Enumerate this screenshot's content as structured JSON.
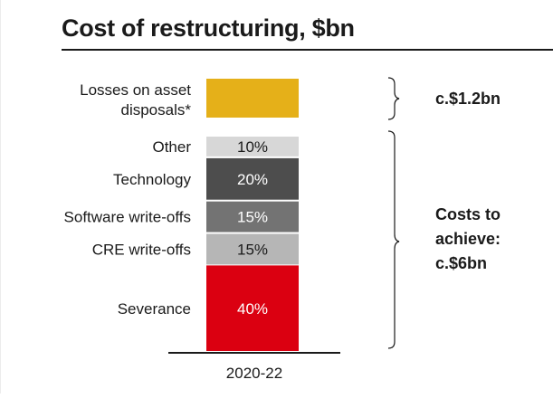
{
  "title": "Cost of restructuring, $bn",
  "chart_data": {
    "type": "bar",
    "stacked": true,
    "title": "Cost of restructuring, $bn",
    "categories": [
      "2020-22"
    ],
    "series": [
      {
        "name": "Severance",
        "value": 40,
        "label": "40%",
        "color": "#db0011",
        "text_color": "#ffffff"
      },
      {
        "name": "CRE write-offs",
        "value": 15,
        "label": "15%",
        "color": "#b6b6b6",
        "text_color": "#1a1a1a"
      },
      {
        "name": "Software write-offs",
        "value": 15,
        "label": "15%",
        "color": "#737373",
        "text_color": "#ffffff"
      },
      {
        "name": "Technology",
        "value": 20,
        "label": "20%",
        "color": "#4d4d4d",
        "text_color": "#ffffff"
      },
      {
        "name": "Other",
        "value": 10,
        "label": "10%",
        "color": "#d7d7d7",
        "text_color": "#1a1a1a"
      }
    ],
    "separate_segment": {
      "name_lines": [
        "Losses on asset",
        "disposals*"
      ],
      "color": "#e5b019"
    },
    "annotations": {
      "losses": "c.$1.2bn",
      "costs": [
        "Costs to",
        "achieve:",
        "c.$6bn"
      ]
    }
  }
}
